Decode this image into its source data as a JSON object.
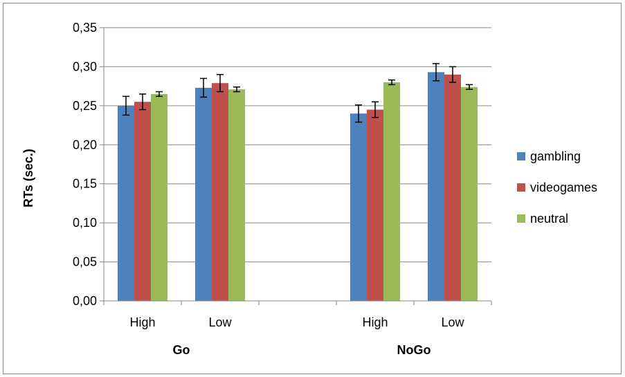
{
  "chart_data": {
    "type": "bar",
    "title": "",
    "ylabel": "RTs (sec.)",
    "ylim": [
      0,
      0.35
    ],
    "ytick_step": 0.05,
    "ytick_labels": [
      "0,00",
      "0,05",
      "0,10",
      "0,15",
      "0,20",
      "0,25",
      "0,30",
      "0,35"
    ],
    "grid": true,
    "legend_position": "right",
    "groups": [
      {
        "label": "Go",
        "categories": [
          "High",
          "Low"
        ]
      },
      {
        "label": "NoGo",
        "categories": [
          "High",
          "Low"
        ]
      }
    ],
    "series": [
      {
        "name": "gambling",
        "color": "#4f81bd",
        "values": [
          0.25,
          0.273,
          0.24,
          0.293
        ],
        "errors": [
          0.012,
          0.012,
          0.011,
          0.011
        ]
      },
      {
        "name": "videogames",
        "color": "#c0504d",
        "values": [
          0.255,
          0.279,
          0.245,
          0.29
        ],
        "errors": [
          0.01,
          0.011,
          0.01,
          0.01
        ]
      },
      {
        "name": "neutral",
        "color": "#9bbb59",
        "values": [
          0.265,
          0.271,
          0.28,
          0.274
        ],
        "errors": [
          0.003,
          0.003,
          0.003,
          0.003
        ]
      }
    ]
  }
}
